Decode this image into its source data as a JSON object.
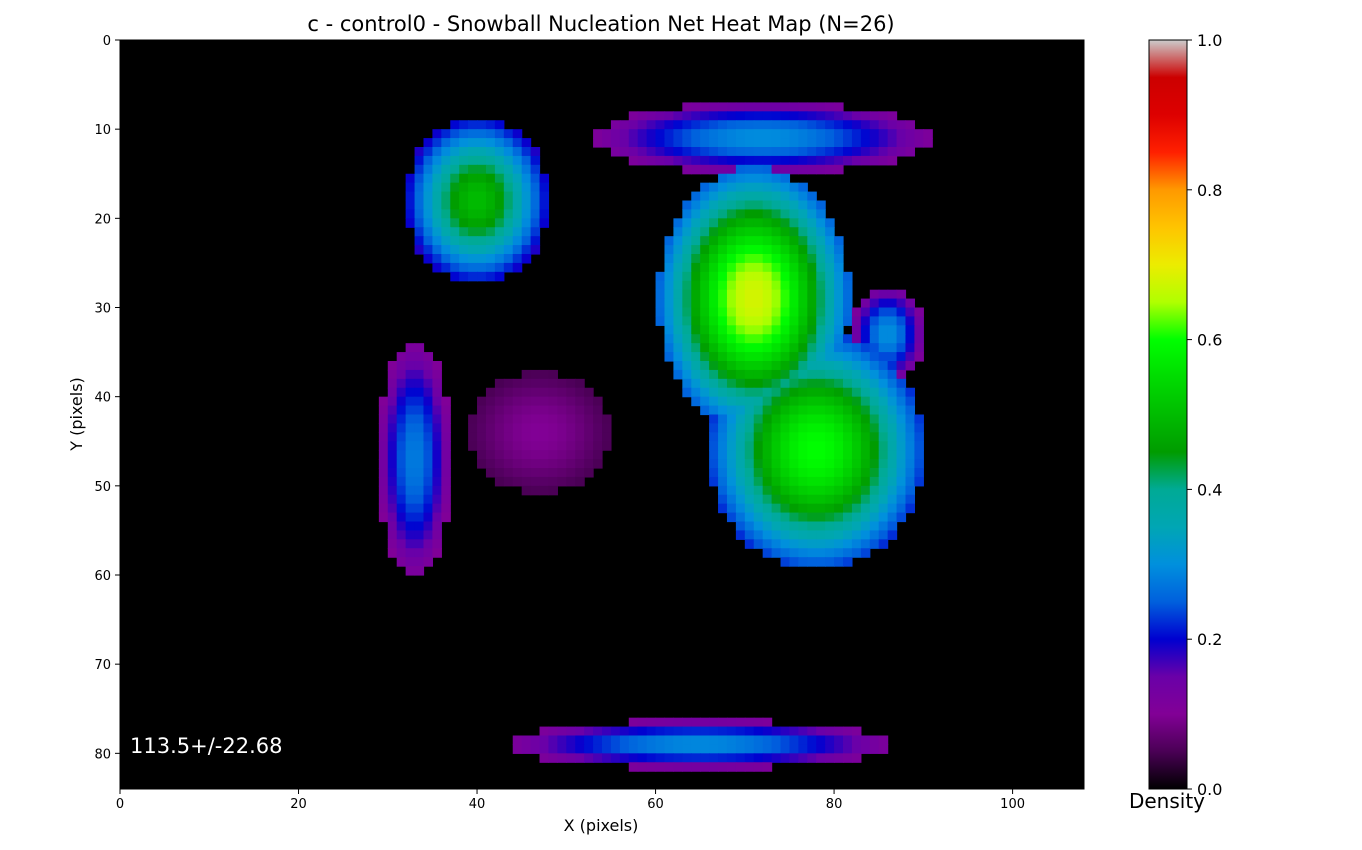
{
  "chart_data": {
    "type": "heatmap",
    "title": "c - control0 - Snowball Nucleation Net Heat Map (N=26)",
    "xlabel": "X (pixels)",
    "ylabel": "Y (pixels)",
    "xlim": [
      0,
      108
    ],
    "ylim": [
      84,
      0
    ],
    "x_ticks": [
      0,
      20,
      40,
      60,
      80,
      100
    ],
    "y_ticks": [
      0,
      10,
      20,
      30,
      40,
      50,
      60,
      70,
      80
    ],
    "colorbar": {
      "label": "Density",
      "range": [
        0.0,
        1.0
      ],
      "ticks": [
        "0.0",
        "0.2",
        "0.4",
        "0.6",
        "0.8",
        "1.0"
      ],
      "colormap": "nipy_spectral"
    },
    "annotation": "113.5+/-22.68",
    "blobs": [
      {
        "region": "upper-left arc",
        "cx": 40,
        "cy": 18,
        "rx": 6,
        "ry": 7,
        "density": 0.5
      },
      {
        "region": "top arc",
        "cx": 72,
        "cy": 11,
        "rx": 14,
        "ry": 3,
        "density": 0.3
      },
      {
        "region": "central column top",
        "cx": 71,
        "cy": 29,
        "rx": 8,
        "ry": 11,
        "density": 0.68
      },
      {
        "region": "central column bottom",
        "cx": 78,
        "cy": 46,
        "rx": 9,
        "ry": 10,
        "density": 0.6
      },
      {
        "region": "left crescent",
        "cx": 33,
        "cy": 47,
        "rx": 3,
        "ry": 10,
        "density": 0.28
      },
      {
        "region": "bottom arc",
        "cx": 65,
        "cy": 79,
        "rx": 16,
        "ry": 2,
        "density": 0.3
      },
      {
        "region": "right patch",
        "cx": 86,
        "cy": 33,
        "rx": 3,
        "ry": 4,
        "density": 0.3
      },
      {
        "region": "diffuse left center",
        "cx": 47,
        "cy": 44,
        "rx": 7,
        "ry": 6,
        "density": 0.1
      }
    ]
  }
}
